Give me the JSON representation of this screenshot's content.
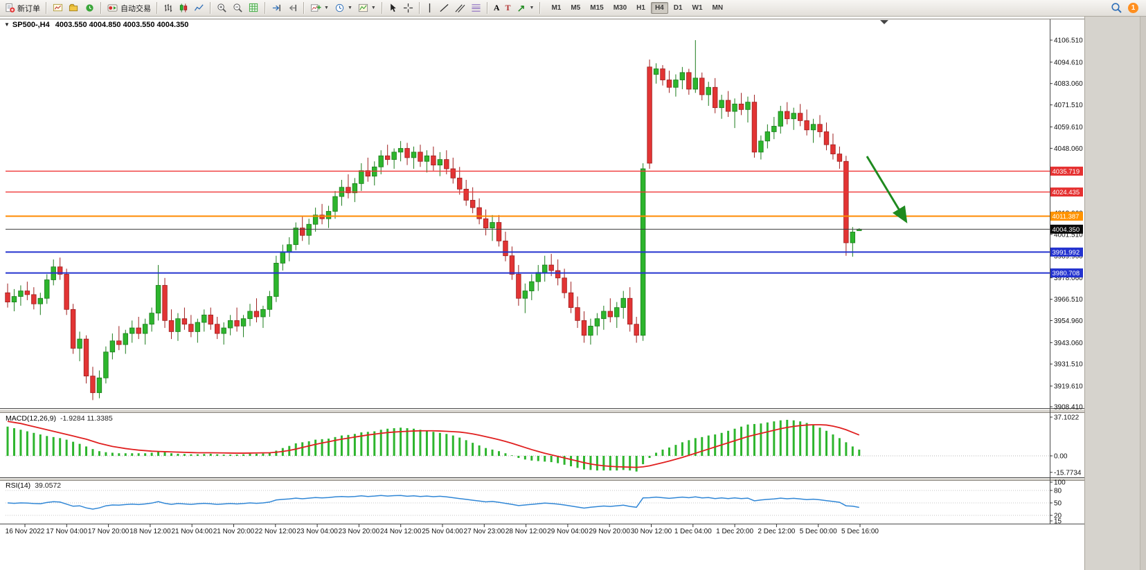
{
  "toolbar": {
    "new_order_label": "新订单",
    "autotrading_label": "自动交易",
    "timeframes": [
      "M1",
      "M5",
      "M15",
      "M30",
      "H1",
      "H4",
      "D1",
      "W1",
      "MN"
    ],
    "active_timeframe": "H4",
    "notification_count": "1"
  },
  "chart_header": {
    "symbol_period": "SP500-,H4",
    "ohlc": "4003.550 4004.850 4003.550 4004.350"
  },
  "price_axis": {
    "ticks": [
      4106.51,
      4094.61,
      4083.06,
      4071.51,
      4059.61,
      4048.06,
      4013.06,
      4001.51,
      3989.96,
      3978.06,
      3966.51,
      3954.96,
      3943.06,
      3931.51,
      3919.61,
      3908.41
    ]
  },
  "levels": [
    {
      "price": 4035.719,
      "label": "4035.719",
      "color": "#ef3434",
      "tag": "#e53131",
      "width": 1.4
    },
    {
      "price": 4024.435,
      "label": "4024.435",
      "color": "#ef3434",
      "tag": "#e53131",
      "width": 1.4
    },
    {
      "price": 4011.387,
      "label": "4011.387",
      "color": "#ff8a00",
      "tag": "#ff9300",
      "width": 2
    },
    {
      "price": 3991.992,
      "label": "3991.992",
      "color": "#2433cf",
      "tag": "#2433cf",
      "width": 2
    },
    {
      "price": 3980.708,
      "label": "3980.708",
      "color": "#2433cf",
      "tag": "#2433cf",
      "width": 2
    }
  ],
  "current_price": {
    "value": 4004.35,
    "label": "4004.350"
  },
  "macd_panel": {
    "name": "MACD(12,26,9)",
    "values": "-1.9284 11.3385",
    "axis_labels": [
      "37.1022",
      "0.00",
      "-15.7734"
    ],
    "axis_values": [
      37.1022,
      0,
      -15.7734
    ]
  },
  "rsi_panel": {
    "name": "RSI(14)",
    "value": "39.0572",
    "axis_labels": [
      "100",
      "80",
      "50",
      "20",
      "15"
    ],
    "axis_values": [
      100,
      80,
      50,
      20,
      15
    ],
    "levels": [
      80,
      50,
      20
    ]
  },
  "time_axis": {
    "labels": [
      "16 Nov 2022",
      "17 Nov 04:00",
      "17 Nov 20:00",
      "18 Nov 12:00",
      "21 Nov 04:00",
      "21 Nov 20:00",
      "22 Nov 12:00",
      "23 Nov 04:00",
      "23 Nov 20:00",
      "24 Nov 12:00",
      "25 Nov 04:00",
      "27 Nov 23:00",
      "28 Nov 12:00",
      "29 Nov 04:00",
      "29 Nov 20:00",
      "30 Nov 12:00",
      "1 Dec 04:00",
      "1 Dec 20:00",
      "2 Dec 12:00",
      "5 Dec 00:00",
      "5 Dec 16:00"
    ]
  },
  "colors": {
    "bull": "#2db52d",
    "bull_border": "#1b7c1b",
    "bear": "#e23434",
    "bear_border": "#9e1f1f",
    "macd_hist": "#2db52d",
    "macd_signal": "#e01f1f",
    "rsi": "#2f86d6",
    "price_line": "#3c3c3c",
    "arrow": "#1f8a1f"
  },
  "chart_data": {
    "type": "candlestick",
    "symbol": "SP500-",
    "timeframe": "H4",
    "title": "SP500-,H4",
    "ylim": [
      3908.41,
      4106.51
    ],
    "hline_levels": [
      4035.719,
      4024.435,
      4011.387,
      3991.992,
      3980.708
    ],
    "last_price": 4004.35,
    "candles": [
      [
        3970,
        3975,
        3962,
        3965
      ],
      [
        3965,
        3972,
        3960,
        3968
      ],
      [
        3968,
        3974,
        3963,
        3971
      ],
      [
        3971,
        3976,
        3966,
        3969
      ],
      [
        3969,
        3973,
        3961,
        3964
      ],
      [
        3964,
        3970,
        3958,
        3967
      ],
      [
        3967,
        3980,
        3964,
        3977
      ],
      [
        3977,
        3988,
        3974,
        3984
      ],
      [
        3984,
        3989,
        3977,
        3980
      ],
      [
        3980,
        3983,
        3958,
        3961
      ],
      [
        3961,
        3964,
        3937,
        3940
      ],
      [
        3940,
        3949,
        3933,
        3945
      ],
      [
        3945,
        3947,
        3921,
        3925
      ],
      [
        3925,
        3930,
        3912,
        3916
      ],
      [
        3916,
        3928,
        3913,
        3924
      ],
      [
        3924,
        3941,
        3921,
        3938
      ],
      [
        3938,
        3948,
        3934,
        3944
      ],
      [
        3944,
        3952,
        3939,
        3942
      ],
      [
        3942,
        3950,
        3937,
        3948
      ],
      [
        3948,
        3955,
        3943,
        3951
      ],
      [
        3951,
        3957,
        3945,
        3948
      ],
      [
        3948,
        3956,
        3942,
        3953
      ],
      [
        3953,
        3962,
        3949,
        3959
      ],
      [
        3959,
        3985,
        3955,
        3974
      ],
      [
        3974,
        3978,
        3951,
        3955
      ],
      [
        3955,
        3961,
        3945,
        3949
      ],
      [
        3949,
        3959,
        3944,
        3956
      ],
      [
        3956,
        3962,
        3950,
        3953
      ],
      [
        3953,
        3958,
        3946,
        3949
      ],
      [
        3949,
        3956,
        3943,
        3954
      ],
      [
        3954,
        3961,
        3949,
        3958
      ],
      [
        3958,
        3962,
        3950,
        3953
      ],
      [
        3953,
        3957,
        3945,
        3948
      ],
      [
        3948,
        3954,
        3942,
        3951
      ],
      [
        3951,
        3958,
        3947,
        3955
      ],
      [
        3955,
        3962,
        3949,
        3952
      ],
      [
        3952,
        3958,
        3946,
        3956
      ],
      [
        3956,
        3964,
        3952,
        3960
      ],
      [
        3960,
        3967,
        3954,
        3957
      ],
      [
        3957,
        3963,
        3951,
        3961
      ],
      [
        3961,
        3971,
        3957,
        3968
      ],
      [
        3968,
        3990,
        3965,
        3986
      ],
      [
        3986,
        3996,
        3982,
        3992
      ],
      [
        3992,
        4000,
        3987,
        3996
      ],
      [
        3996,
        4008,
        3993,
        4005
      ],
      [
        4005,
        4011,
        3998,
        4001
      ],
      [
        4001,
        4010,
        3996,
        4007
      ],
      [
        4007,
        4016,
        4003,
        4012
      ],
      [
        4012,
        4018,
        4007,
        4010
      ],
      [
        4010,
        4017,
        4005,
        4014
      ],
      [
        4014,
        4025,
        4010,
        4022
      ],
      [
        4022,
        4031,
        4017,
        4027
      ],
      [
        4027,
        4034,
        4021,
        4024
      ],
      [
        4024,
        4032,
        4019,
        4029
      ],
      [
        4029,
        4040,
        4025,
        4036
      ],
      [
        4036,
        4043,
        4030,
        4033
      ],
      [
        4033,
        4041,
        4028,
        4038
      ],
      [
        4038,
        4047,
        4034,
        4044
      ],
      [
        4044,
        4050,
        4039,
        4042
      ],
      [
        4042,
        4048,
        4037,
        4046
      ],
      [
        4046,
        4052,
        4041,
        4048
      ],
      [
        4048,
        4051,
        4039,
        4043
      ],
      [
        4043,
        4049,
        4037,
        4046
      ],
      [
        4046,
        4050,
        4038,
        4041
      ],
      [
        4041,
        4047,
        4035,
        4044
      ],
      [
        4044,
        4049,
        4036,
        4039
      ],
      [
        4039,
        4046,
        4033,
        4042
      ],
      [
        4042,
        4047,
        4034,
        4037
      ],
      [
        4037,
        4043,
        4029,
        4032
      ],
      [
        4032,
        4038,
        4023,
        4026
      ],
      [
        4026,
        4031,
        4017,
        4020
      ],
      [
        4020,
        4027,
        4013,
        4016
      ],
      [
        4016,
        4021,
        4007,
        4010
      ],
      [
        4010,
        4015,
        4001,
        4005
      ],
      [
        4005,
        4012,
        3998,
        4008
      ],
      [
        4008,
        4012,
        3995,
        3998
      ],
      [
        3998,
        4003,
        3987,
        3990
      ],
      [
        3990,
        3995,
        3977,
        3980
      ],
      [
        3980,
        3985,
        3963,
        3967
      ],
      [
        3967,
        3975,
        3959,
        3971
      ],
      [
        3971,
        3980,
        3966,
        3976
      ],
      [
        3976,
        3985,
        3971,
        3981
      ],
      [
        3981,
        3990,
        3976,
        3985
      ],
      [
        3985,
        3991,
        3979,
        3982
      ],
      [
        3982,
        3988,
        3974,
        3978
      ],
      [
        3978,
        3983,
        3967,
        3970
      ],
      [
        3970,
        3976,
        3959,
        3962
      ],
      [
        3962,
        3968,
        3951,
        3955
      ],
      [
        3955,
        3960,
        3943,
        3947
      ],
      [
        3947,
        3956,
        3942,
        3952
      ],
      [
        3952,
        3959,
        3947,
        3956
      ],
      [
        3956,
        3963,
        3950,
        3960
      ],
      [
        3960,
        3967,
        3954,
        3957
      ],
      [
        3957,
        3965,
        3951,
        3962
      ],
      [
        3962,
        3971,
        3956,
        3967
      ],
      [
        3967,
        3973,
        3949,
        3953
      ],
      [
        3953,
        3957,
        3943,
        3947
      ],
      [
        3947,
        4040,
        3944,
        4037
      ],
      [
        4092,
        4096,
        4037,
        4040
      ],
      [
        4088,
        4094,
        4083,
        4091
      ],
      [
        4091,
        4093,
        4082,
        4085
      ],
      [
        4085,
        4090,
        4078,
        4081
      ],
      [
        4081,
        4088,
        4076,
        4085
      ],
      [
        4085,
        4092,
        4080,
        4089
      ],
      [
        4089,
        4091,
        4077,
        4080
      ],
      [
        4080,
        4106.5,
        4078,
        4086
      ],
      [
        4086,
        4089,
        4074,
        4077
      ],
      [
        4077,
        4084,
        4071,
        4081
      ],
      [
        4081,
        4086,
        4067,
        4070
      ],
      [
        4070,
        4077,
        4064,
        4074
      ],
      [
        4074,
        4079,
        4065,
        4068
      ],
      [
        4068,
        4075,
        4059,
        4072
      ],
      [
        4072,
        4078,
        4066,
        4069
      ],
      [
        4069,
        4076,
        4062,
        4073
      ],
      [
        4073,
        4077,
        4043,
        4046
      ],
      [
        4046,
        4055,
        4042,
        4052
      ],
      [
        4052,
        4061,
        4048,
        4057
      ],
      [
        4057,
        4065,
        4053,
        4060
      ],
      [
        4060,
        4071,
        4056,
        4068
      ],
      [
        4068,
        4073,
        4061,
        4064
      ],
      [
        4064,
        4070,
        4058,
        4067
      ],
      [
        4067,
        4072,
        4060,
        4063
      ],
      [
        4063,
        4069,
        4055,
        4058
      ],
      [
        4058,
        4064,
        4051,
        4061
      ],
      [
        4061,
        4066,
        4054,
        4057
      ],
      [
        4057,
        4062,
        4047,
        4050
      ],
      [
        4050,
        4056,
        4042,
        4045
      ],
      [
        4045,
        4049,
        4037,
        4041
      ],
      [
        4041,
        4044,
        3990,
        3997
      ],
      [
        3997,
        4005.5,
        3989.5,
        4002.8
      ],
      [
        4003.55,
        4004.85,
        4003.55,
        4004.35
      ]
    ],
    "indicators": {
      "macd": {
        "params": "12,26,9",
        "range": [
          -15.7734,
          37.1022
        ],
        "histogram": [
          28,
          26.5,
          25,
          23.5,
          22,
          20.5,
          19,
          18,
          17,
          15.5,
          13.5,
          11.5,
          9,
          6.5,
          4.5,
          3.5,
          3,
          2.5,
          2.5,
          2.5,
          2.5,
          2.5,
          3,
          4,
          3.5,
          2.5,
          2,
          1.8,
          1.5,
          1.5,
          1.8,
          2,
          1.5,
          1.2,
          1.2,
          1.3,
          1.5,
          2,
          2,
          2.2,
          3,
          5,
          7.5,
          9.5,
          12,
          13,
          14,
          15.5,
          16,
          16.5,
          18,
          19.5,
          20,
          21,
          22.5,
          23,
          23.5,
          25,
          26,
          26.5,
          27,
          26.5,
          26,
          25,
          24,
          23,
          22,
          21,
          19.5,
          17.5,
          15,
          12.5,
          10,
          7.5,
          6,
          4.5,
          2.5,
          0.5,
          -2,
          -3.5,
          -4.5,
          -5,
          -5.5,
          -6,
          -7,
          -8.5,
          -10,
          -11.5,
          -13,
          -13.5,
          -14,
          -14,
          -14,
          -14,
          -13.5,
          -14,
          -15,
          -8,
          -2,
          3,
          6,
          8,
          10.5,
          13,
          15,
          17,
          18,
          19.5,
          20.5,
          22,
          24,
          26,
          28,
          30,
          30.5,
          31,
          32,
          33,
          34,
          34.5,
          34,
          33,
          31.5,
          29.5,
          27,
          24,
          20.5,
          17,
          13,
          9,
          6
        ],
        "signal": [
          33,
          32,
          31,
          29.5,
          28,
          26.5,
          25,
          23.5,
          22,
          20.5,
          19,
          17.5,
          16,
          14,
          12,
          10.5,
          9,
          8,
          7,
          6.2,
          5.5,
          5,
          4.5,
          4.2,
          4,
          3.8,
          3.6,
          3.4,
          3.2,
          3,
          3,
          3,
          2.9,
          2.8,
          2.7,
          2.6,
          2.6,
          2.7,
          2.8,
          2.9,
          3,
          3.5,
          4.2,
          5.2,
          6.5,
          8,
          9.5,
          11,
          12.3,
          13.5,
          14.8,
          16,
          17,
          18,
          19,
          20,
          20.8,
          21.6,
          22.3,
          22.8,
          23.2,
          23.5,
          23.8,
          24,
          24,
          24,
          23.8,
          23.5,
          23.2,
          22.8,
          22,
          21,
          19.8,
          18.4,
          17,
          15.5,
          13.8,
          12,
          10,
          8,
          6,
          4.2,
          2.5,
          1,
          -0.5,
          -2,
          -3.5,
          -5,
          -6.5,
          -7.8,
          -8.8,
          -9.5,
          -10,
          -10.4,
          -10.6,
          -10.8,
          -11,
          -10.5,
          -9.5,
          -8,
          -6.5,
          -5,
          -3.2,
          -1.5,
          0.5,
          2.5,
          4.5,
          6.5,
          8.5,
          10.5,
          12.5,
          14.5,
          16.5,
          18.5,
          20,
          21.5,
          23,
          24.5,
          26,
          27.2,
          28.2,
          29,
          29.5,
          29.8,
          29.8,
          29.5,
          28.5,
          27,
          25,
          22.5,
          20
        ]
      },
      "rsi": {
        "params": "14",
        "range": [
          15,
          100
        ],
        "values": [
          50,
          49,
          50,
          49.5,
          48.5,
          48,
          51,
          53,
          52,
          47,
          42,
          43,
          38,
          35,
          38,
          43,
          45,
          44.5,
          46,
          47,
          46,
          47.5,
          49.5,
          53,
          49,
          46.5,
          48.5,
          47.5,
          46.5,
          48,
          49,
          48,
          46.5,
          47.5,
          48.5,
          47.5,
          48.5,
          50,
          49,
          50,
          52,
          57,
          58.5,
          59.5,
          61.5,
          60,
          61.5,
          63,
          62,
          63,
          64.5,
          65.5,
          64.5,
          65.5,
          67,
          65.5,
          66.5,
          68,
          66.5,
          67.5,
          68,
          66,
          67,
          65.5,
          66.5,
          65,
          66,
          64.5,
          62.5,
          60.5,
          58.5,
          56.5,
          54.5,
          52.5,
          53.5,
          51.5,
          49,
          46.5,
          43.5,
          45,
          46.5,
          48,
          49.5,
          48.5,
          47,
          45,
          42.5,
          40,
          37.5,
          39.5,
          41,
          42.5,
          41.5,
          43,
          44.5,
          41.5,
          39.5,
          62,
          62.5,
          64,
          62.5,
          61,
          62.5,
          64,
          62.5,
          64.5,
          62,
          63,
          60.5,
          62,
          60.5,
          62,
          60.5,
          61.5,
          55,
          57,
          58.5,
          59.5,
          61.5,
          60,
          61,
          59.5,
          58,
          59,
          57.5,
          55.5,
          53.5,
          51.5,
          43,
          42,
          39.1
        ]
      }
    }
  }
}
